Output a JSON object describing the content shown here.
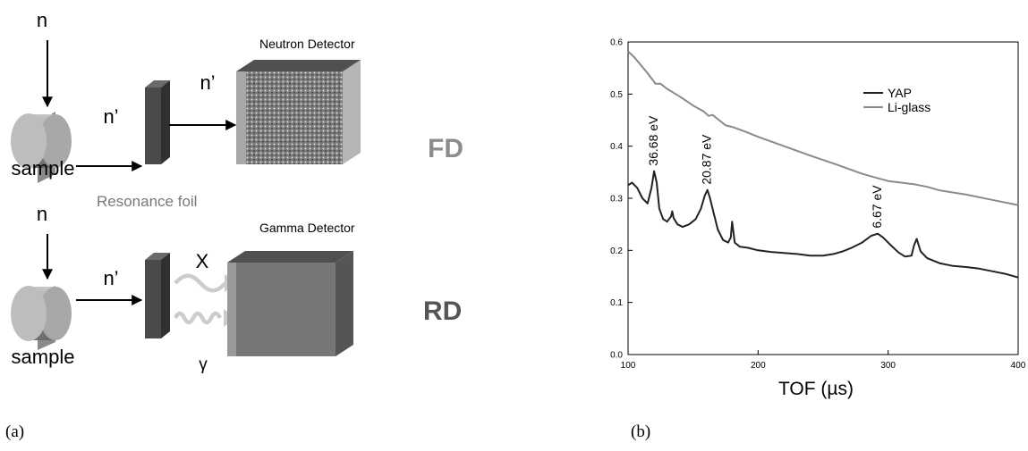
{
  "panel_labels": {
    "a": "(a)",
    "b": "(b)"
  },
  "schematic": {
    "top": {
      "incident": "n",
      "scattered_1": "n’",
      "scattered_2": "n’",
      "sample_label": "sample",
      "detector_label": "Neutron Detector",
      "mode_label": "FD"
    },
    "bottom": {
      "foil_label": "Resonance foil",
      "incident": "n",
      "scattered": "n’",
      "sample_label": "sample",
      "detector_label": "Gamma Detector",
      "xray_symbol": "X",
      "gamma_symbol": "γ",
      "mode_label": "RD"
    },
    "colors": {
      "fd_text": "#8c8c8c",
      "rd_text": "#555555",
      "foil": "#4a4a4a",
      "detector": "#777777"
    }
  },
  "chart_data": {
    "type": "line",
    "xlabel": "TOF (µs)",
    "ylabel": "",
    "xlim": [
      100,
      400
    ],
    "ylim": [
      0.0,
      0.6
    ],
    "x_ticks": [
      100,
      200,
      300,
      400
    ],
    "y_ticks": [
      0.0,
      0.1,
      0.2,
      0.3,
      0.4,
      0.5,
      0.6
    ],
    "legend_position": "top-right",
    "grid": false,
    "series": [
      {
        "name": "YAP",
        "color": "#222222",
        "points": [
          [
            100,
            0.325
          ],
          [
            103,
            0.33
          ],
          [
            107,
            0.32
          ],
          [
            111,
            0.3
          ],
          [
            115,
            0.29
          ],
          [
            118,
            0.32
          ],
          [
            120,
            0.352
          ],
          [
            122,
            0.33
          ],
          [
            124,
            0.28
          ],
          [
            127,
            0.26
          ],
          [
            130,
            0.255
          ],
          [
            133,
            0.265
          ],
          [
            134,
            0.275
          ],
          [
            135,
            0.262
          ],
          [
            138,
            0.25
          ],
          [
            142,
            0.245
          ],
          [
            147,
            0.25
          ],
          [
            152,
            0.26
          ],
          [
            156,
            0.28
          ],
          [
            159,
            0.305
          ],
          [
            161,
            0.316
          ],
          [
            163,
            0.3
          ],
          [
            166,
            0.27
          ],
          [
            169,
            0.24
          ],
          [
            173,
            0.22
          ],
          [
            177,
            0.215
          ],
          [
            179,
            0.225
          ],
          [
            180,
            0.255
          ],
          [
            182,
            0.215
          ],
          [
            186,
            0.207
          ],
          [
            192,
            0.205
          ],
          [
            200,
            0.2
          ],
          [
            210,
            0.197
          ],
          [
            220,
            0.195
          ],
          [
            230,
            0.193
          ],
          [
            240,
            0.19
          ],
          [
            250,
            0.19
          ],
          [
            258,
            0.193
          ],
          [
            265,
            0.198
          ],
          [
            272,
            0.205
          ],
          [
            280,
            0.215
          ],
          [
            287,
            0.228
          ],
          [
            292,
            0.232
          ],
          [
            296,
            0.225
          ],
          [
            302,
            0.21
          ],
          [
            308,
            0.196
          ],
          [
            313,
            0.188
          ],
          [
            318,
            0.19
          ],
          [
            320,
            0.21
          ],
          [
            322,
            0.222
          ],
          [
            325,
            0.198
          ],
          [
            330,
            0.185
          ],
          [
            340,
            0.175
          ],
          [
            350,
            0.17
          ],
          [
            360,
            0.168
          ],
          [
            370,
            0.165
          ],
          [
            380,
            0.16
          ],
          [
            390,
            0.155
          ],
          [
            400,
            0.148
          ]
        ]
      },
      {
        "name": "Li-glass",
        "color": "#8a8a8a",
        "points": [
          [
            100,
            0.582
          ],
          [
            105,
            0.57
          ],
          [
            110,
            0.555
          ],
          [
            115,
            0.54
          ],
          [
            119,
            0.527
          ],
          [
            121,
            0.52
          ],
          [
            125,
            0.52
          ],
          [
            130,
            0.51
          ],
          [
            140,
            0.495
          ],
          [
            150,
            0.478
          ],
          [
            158,
            0.467
          ],
          [
            162,
            0.458
          ],
          [
            165,
            0.46
          ],
          [
            170,
            0.45
          ],
          [
            175,
            0.44
          ],
          [
            180,
            0.437
          ],
          [
            190,
            0.428
          ],
          [
            200,
            0.418
          ],
          [
            220,
            0.4
          ],
          [
            240,
            0.382
          ],
          [
            260,
            0.365
          ],
          [
            280,
            0.347
          ],
          [
            290,
            0.34
          ],
          [
            300,
            0.333
          ],
          [
            310,
            0.33
          ],
          [
            320,
            0.327
          ],
          [
            330,
            0.322
          ],
          [
            340,
            0.315
          ],
          [
            360,
            0.307
          ],
          [
            380,
            0.297
          ],
          [
            400,
            0.287
          ]
        ]
      }
    ],
    "annotations": [
      {
        "text": "36.68 eV",
        "x": 120,
        "y": 0.352
      },
      {
        "text": "20.87 eV",
        "x": 161,
        "y": 0.316
      },
      {
        "text": "6.67 eV",
        "x": 292,
        "y": 0.232
      }
    ]
  }
}
